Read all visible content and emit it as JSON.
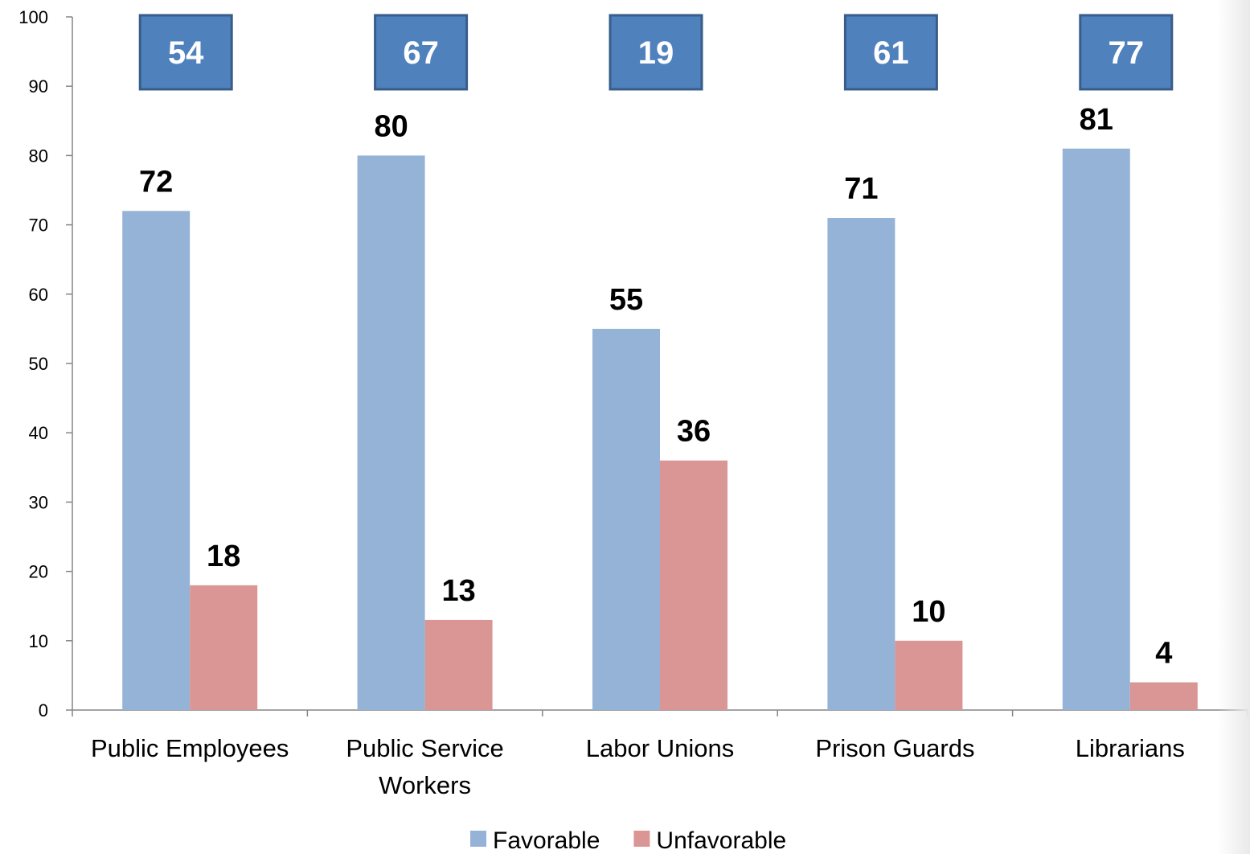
{
  "chart_data": {
    "type": "bar",
    "title": "",
    "xlabel": "",
    "ylabel": "",
    "ylim": [
      0,
      100
    ],
    "yticks": [
      0,
      10,
      20,
      30,
      40,
      50,
      60,
      70,
      80,
      90,
      100
    ],
    "grid": false,
    "legend_position": "bottom",
    "categories": [
      [
        "Public Employees"
      ],
      [
        "Public Service",
        "Workers"
      ],
      [
        "Labor Unions"
      ],
      [
        "Prison Guards"
      ],
      [
        "Librarians"
      ]
    ],
    "series": [
      {
        "name": "Favorable",
        "color": "#95b3d7",
        "values": [
          72,
          80,
          55,
          71,
          81
        ]
      },
      {
        "name": "Unfavorable",
        "color": "#d99694",
        "values": [
          18,
          13,
          36,
          10,
          4
        ]
      }
    ],
    "net_badges": {
      "values": [
        "54",
        "67",
        "19",
        "61",
        "77"
      ],
      "fill": "#4f81bd",
      "border": "#385d8a",
      "text_color": "#ffffff"
    },
    "label_color": "#000000",
    "axis_color": "#868686"
  }
}
